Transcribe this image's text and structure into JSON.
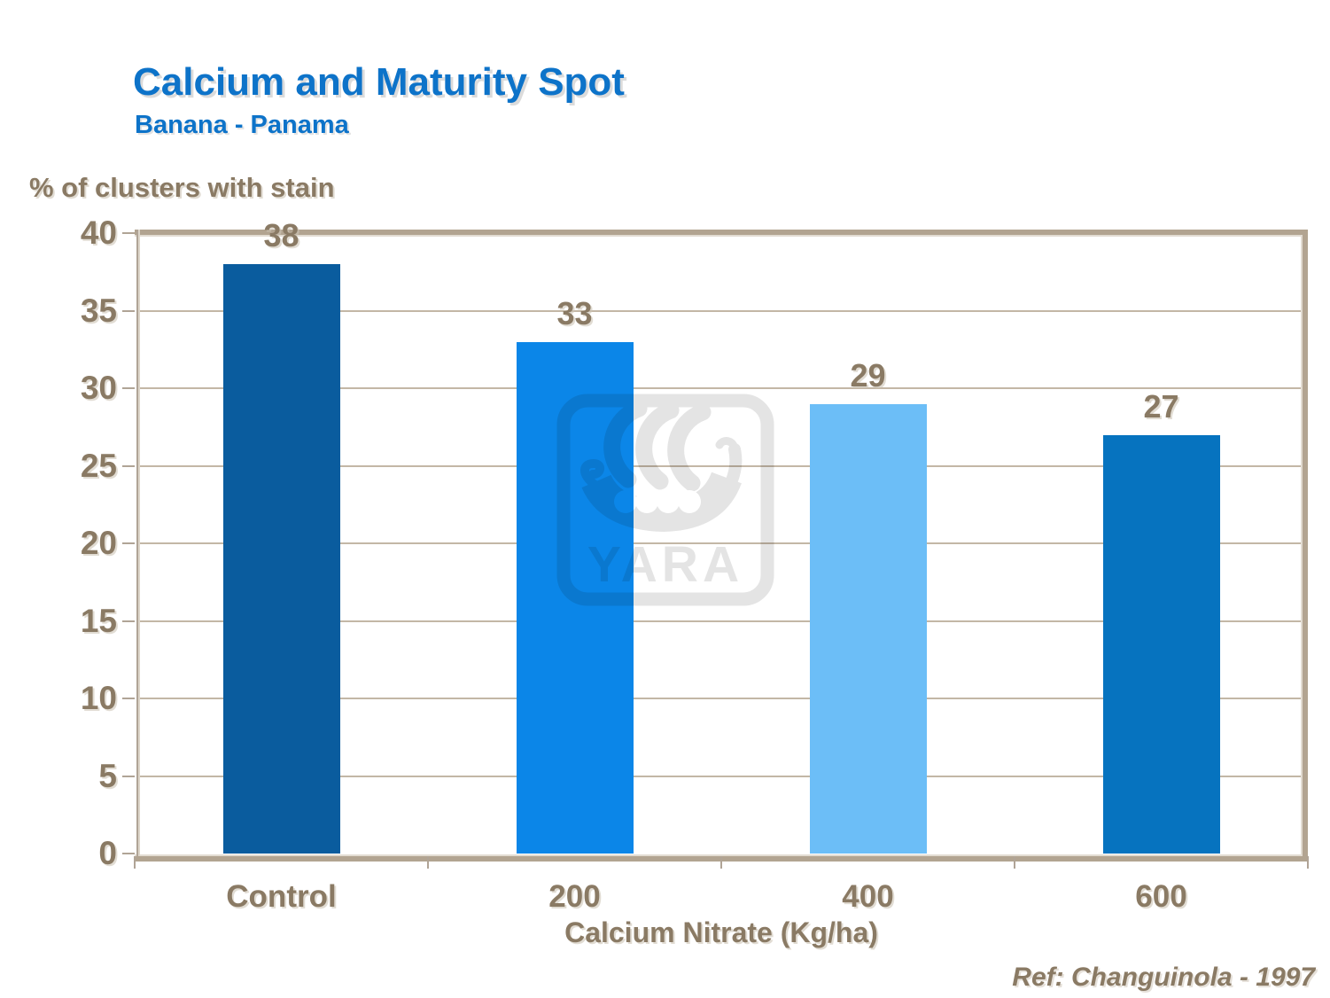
{
  "slide": {
    "title": "Calcium and Maturity Spot",
    "subtitle": "Banana - Panama",
    "y_axis_title": "% of clusters with stain",
    "x_axis_title": "Calcium Nitrate (Kg/ha)",
    "reference": "Ref: Changuinola - 1997",
    "watermark_text": "YARA"
  },
  "chart_data": {
    "type": "bar",
    "title": "Calcium and Maturity Spot",
    "subtitle": "Banana - Panama",
    "ylabel": "% of clusters with stain",
    "xlabel": "Calcium Nitrate (Kg/ha)",
    "categories": [
      "Control",
      "200",
      "400",
      "600"
    ],
    "values": [
      38,
      33,
      29,
      27
    ],
    "bar_colors": [
      "#0a5c9e",
      "#0b86e8",
      "#6cbef7",
      "#0673bf"
    ],
    "ylim": [
      0,
      40
    ],
    "yticks": [
      0,
      5,
      10,
      15,
      20,
      25,
      30,
      35,
      40
    ],
    "grid": true,
    "legend": false,
    "annotation": "Ref: Changuinola - 1997",
    "text_color": "#8a7a64",
    "title_color": "#0d73c9",
    "gridline_color": "#c3b7a6",
    "frame_color": "#b2a491",
    "watermark": "YARA"
  }
}
